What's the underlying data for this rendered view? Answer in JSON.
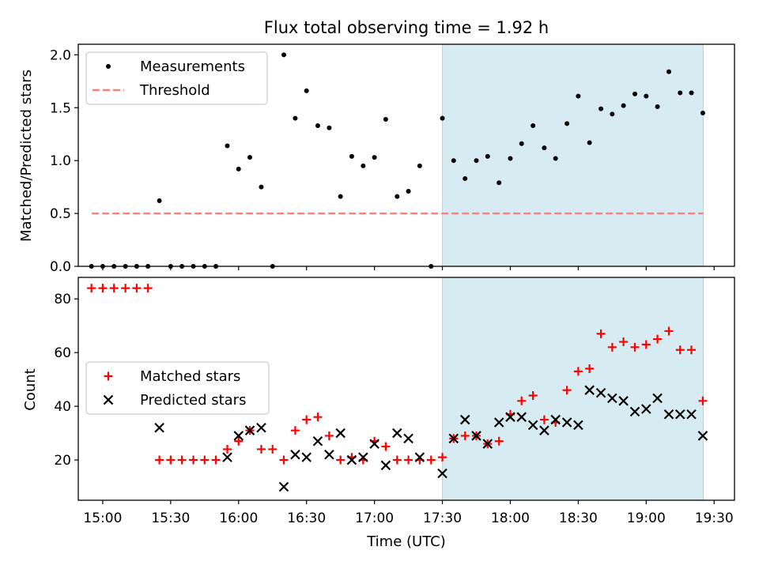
{
  "title": "Flux total observing time = 1.92 h",
  "colors": {
    "shade": "#add8e6",
    "threshold": "#ff7f7f",
    "matched": "#ff0000",
    "predicted": "#000000",
    "measurements": "#000000"
  },
  "chart_data": [
    {
      "type": "scatter",
      "ylabel": "Matched/Predicted stars",
      "xlim": [
        14.82,
        19.65
      ],
      "ylim": [
        0,
        2.1
      ],
      "yticks": [
        0.0,
        0.5,
        1.0,
        1.5,
        2.0
      ],
      "ytick_labels": [
        "0.0",
        "0.5",
        "1.0",
        "1.5",
        "2.0"
      ],
      "shaded_span": [
        17.5,
        19.42
      ],
      "legend_position": "upper-left",
      "legend": [
        "Measurements",
        "Threshold"
      ],
      "threshold": {
        "name": "Threshold",
        "y": 0.5,
        "x": [
          14.92,
          19.42
        ]
      },
      "series": [
        {
          "name": "Measurements",
          "x": [
            14.917,
            15.0,
            15.083,
            15.167,
            15.25,
            15.333,
            15.417,
            15.5,
            15.583,
            15.667,
            15.75,
            15.833,
            15.917,
            16.0,
            16.083,
            16.167,
            16.25,
            16.333,
            16.417,
            16.5,
            16.583,
            16.667,
            16.75,
            16.833,
            16.917,
            17.0,
            17.083,
            17.167,
            17.25,
            17.333,
            17.417,
            17.5,
            17.583,
            17.667,
            17.75,
            17.833,
            17.917,
            18.0,
            18.083,
            18.167,
            18.25,
            18.333,
            18.417,
            18.5,
            18.583,
            18.667,
            18.75,
            18.833,
            18.917,
            19.0,
            19.083,
            19.167,
            19.25,
            19.333,
            19.417
          ],
          "y": [
            0,
            0,
            0,
            0,
            0,
            0,
            0.62,
            0,
            0,
            0,
            0,
            0,
            1.14,
            0.92,
            1.03,
            0.75,
            0,
            2.0,
            1.4,
            1.66,
            1.33,
            1.31,
            0.66,
            1.04,
            0.95,
            1.03,
            1.39,
            0.66,
            0.71,
            0.95,
            0,
            1.4,
            1.0,
            0.83,
            1.0,
            1.04,
            0.79,
            1.02,
            1.16,
            1.33,
            1.12,
            1.02,
            1.35,
            1.61,
            1.17,
            1.49,
            1.44,
            1.52,
            1.63,
            1.61,
            1.51,
            1.84,
            1.64,
            1.64,
            1.45
          ]
        }
      ]
    },
    {
      "type": "scatter",
      "ylabel": "Count",
      "xlabel": "Time (UTC)",
      "xlim": [
        14.82,
        19.65
      ],
      "ylim": [
        5,
        88
      ],
      "yticks": [
        20,
        40,
        60,
        80
      ],
      "ytick_labels": [
        "20",
        "40",
        "60",
        "80"
      ],
      "xticks": [
        15.0,
        15.5,
        16.0,
        16.5,
        17.0,
        17.5,
        18.0,
        18.5,
        19.0,
        19.5
      ],
      "xtick_labels": [
        "15:00",
        "15:30",
        "16:00",
        "16:30",
        "17:00",
        "17:30",
        "18:00",
        "18:30",
        "19:00",
        "19:30"
      ],
      "shaded_span": [
        17.5,
        19.42
      ],
      "legend_position": "center-left",
      "legend": [
        "Matched stars",
        "Predicted stars"
      ],
      "series": [
        {
          "name": "Matched stars",
          "x": [
            14.917,
            15.0,
            15.083,
            15.167,
            15.25,
            15.333,
            15.417,
            15.5,
            15.583,
            15.667,
            15.75,
            15.833,
            15.917,
            16.0,
            16.083,
            16.167,
            16.25,
            16.333,
            16.417,
            16.5,
            16.583,
            16.667,
            16.75,
            16.833,
            16.917,
            17.0,
            17.083,
            17.167,
            17.25,
            17.333,
            17.417,
            17.5,
            17.583,
            17.667,
            17.75,
            17.833,
            17.917,
            18.0,
            18.083,
            18.167,
            18.25,
            18.333,
            18.417,
            18.5,
            18.583,
            18.667,
            18.75,
            18.833,
            18.917,
            19.0,
            19.083,
            19.167,
            19.25,
            19.333,
            19.417
          ],
          "y": [
            84,
            84,
            84,
            84,
            84,
            84,
            20,
            20,
            20,
            20,
            20,
            20,
            24,
            27,
            31,
            24,
            24,
            20,
            31,
            35,
            36,
            29,
            20,
            21,
            20,
            27,
            25,
            20,
            20,
            20,
            20,
            21,
            28,
            29,
            29,
            26,
            27,
            37,
            42,
            44,
            35,
            34,
            46,
            53,
            54,
            67,
            62,
            64,
            62,
            63,
            65,
            68,
            61,
            61,
            42
          ]
        },
        {
          "name": "Predicted stars",
          "x": [
            15.417,
            15.917,
            16.0,
            16.083,
            16.167,
            16.333,
            16.417,
            16.5,
            16.583,
            16.667,
            16.75,
            16.833,
            16.917,
            17.0,
            17.083,
            17.167,
            17.25,
            17.333,
            17.5,
            17.583,
            17.667,
            17.75,
            17.833,
            17.917,
            18.0,
            18.083,
            18.167,
            18.25,
            18.333,
            18.417,
            18.5,
            18.583,
            18.667,
            18.75,
            18.833,
            18.917,
            19.0,
            19.083,
            19.167,
            19.25,
            19.333,
            19.417
          ],
          "y": [
            32,
            21,
            29,
            31,
            32,
            10,
            22,
            21,
            27,
            22,
            30,
            20,
            21,
            26,
            18,
            30,
            28,
            21,
            15,
            28,
            35,
            29,
            26,
            34,
            36,
            36,
            33,
            31,
            35,
            34,
            33,
            46,
            45,
            43,
            42,
            38,
            39,
            43,
            37,
            37,
            37,
            29
          ]
        }
      ]
    }
  ]
}
